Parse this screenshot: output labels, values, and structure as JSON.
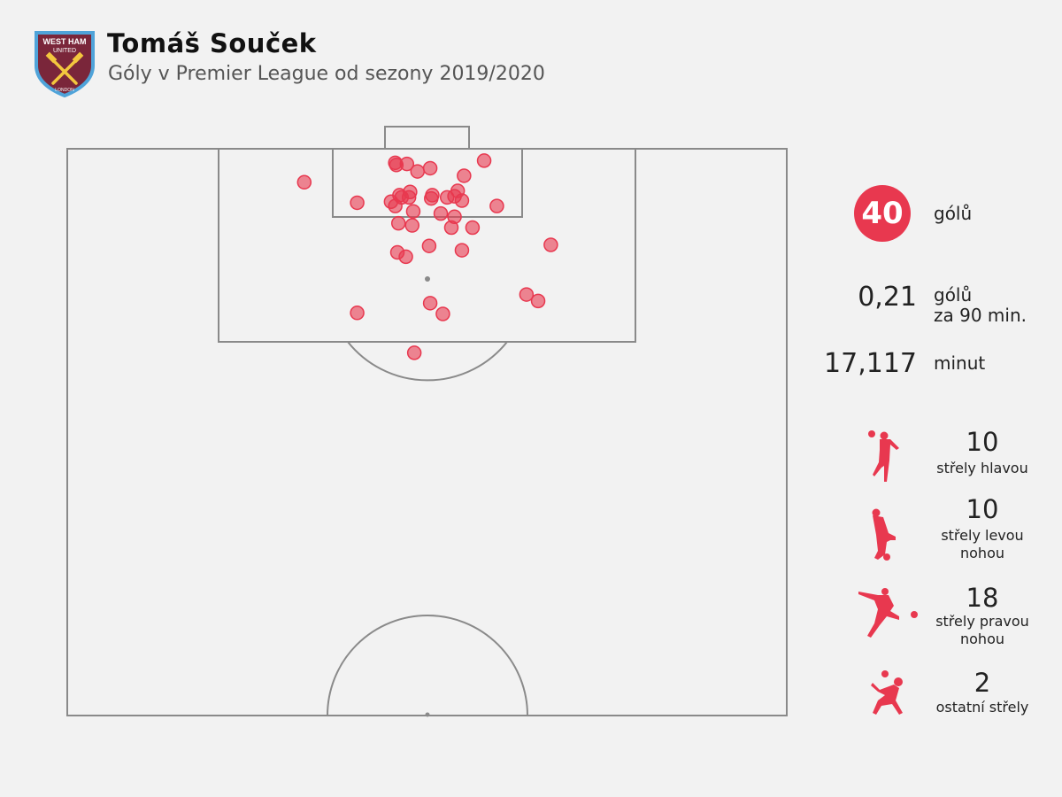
{
  "header": {
    "title": "Tomáš Souček",
    "subtitle": "Góly v Premier League od sezony 2019/2020",
    "logo": {
      "name": "west-ham-united-crest",
      "text_top": "WEST HAM UNITED",
      "text_bottom": "LONDON"
    }
  },
  "stats": {
    "goals": "40",
    "goals_label": "gólů",
    "per90": "0,21",
    "per90_label_1": "gólů",
    "per90_label_2": "za 90 min.",
    "minutes": "17,117",
    "minutes_label": "minut"
  },
  "shot_types": [
    {
      "icon": "header-player-icon",
      "value": "10",
      "label": "střely hlavou"
    },
    {
      "icon": "left-foot-player-icon",
      "value": "10",
      "label_1": "střely levou",
      "label_2": "nohou"
    },
    {
      "icon": "right-foot-player-icon",
      "value": "18",
      "label_1": "střely pravou",
      "label_2": "nohou"
    },
    {
      "icon": "other-shot-player-icon",
      "value": "2",
      "label": "ostatní střely"
    }
  ],
  "colors": {
    "accent": "#e8384f",
    "pitch_line": "#8a8a8a",
    "background": "#f2f2f2"
  },
  "chart_data": {
    "type": "scatter",
    "description_units": "metres: x across pitch from left touchline (0-68), y distance from goal line (0-52.5)",
    "xlim": [
      0,
      68
    ],
    "ylim": [
      0,
      52.5
    ],
    "points": [
      [
        31.0,
        1.3
      ],
      [
        31.1,
        1.5
      ],
      [
        32.1,
        1.4
      ],
      [
        33.1,
        2.1
      ],
      [
        34.3,
        1.8
      ],
      [
        39.4,
        1.1
      ],
      [
        37.5,
        2.5
      ],
      [
        22.4,
        3.1
      ],
      [
        27.4,
        5.0
      ],
      [
        30.6,
        4.9
      ],
      [
        31.0,
        5.3
      ],
      [
        31.4,
        4.3
      ],
      [
        32.4,
        4.0
      ],
      [
        32.3,
        4.5
      ],
      [
        31.6,
        4.5
      ],
      [
        32.7,
        5.8
      ],
      [
        34.5,
        4.3
      ],
      [
        34.4,
        4.6
      ],
      [
        35.9,
        4.5
      ],
      [
        36.9,
        3.9
      ],
      [
        36.6,
        4.4
      ],
      [
        37.3,
        4.8
      ],
      [
        40.6,
        5.3
      ],
      [
        35.3,
        6.0
      ],
      [
        36.6,
        6.3
      ],
      [
        31.3,
        6.9
      ],
      [
        32.6,
        7.1
      ],
      [
        36.3,
        7.3
      ],
      [
        38.3,
        7.3
      ],
      [
        34.2,
        9.0
      ],
      [
        37.3,
        9.4
      ],
      [
        31.2,
        9.6
      ],
      [
        32.0,
        10.0
      ],
      [
        45.7,
        8.9
      ],
      [
        43.4,
        13.5
      ],
      [
        44.5,
        14.1
      ],
      [
        34.3,
        14.3
      ],
      [
        35.5,
        15.3
      ],
      [
        27.4,
        15.2
      ],
      [
        32.8,
        18.9
      ]
    ]
  }
}
